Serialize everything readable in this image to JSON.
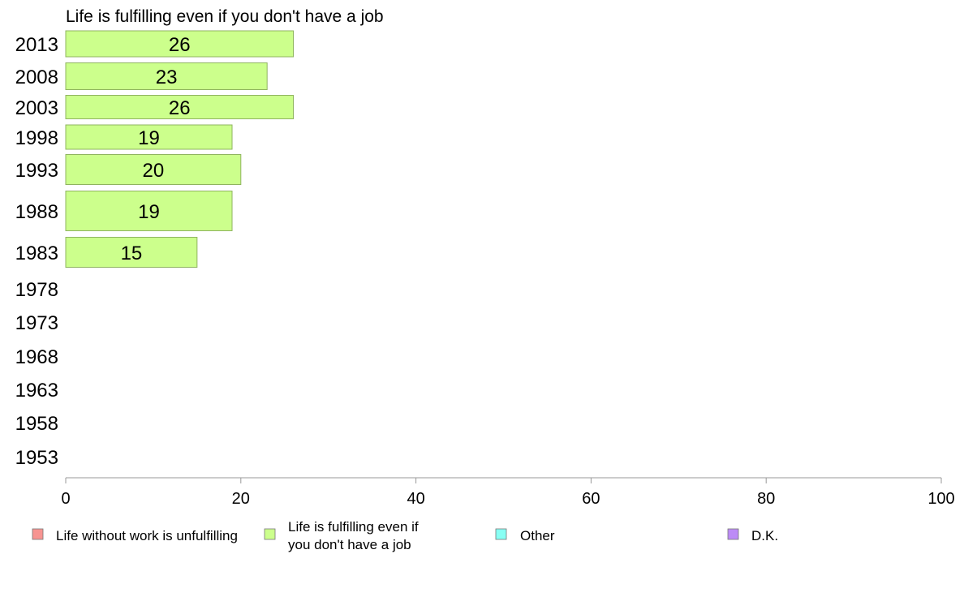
{
  "chart_data": {
    "type": "bar",
    "orientation": "horizontal",
    "title": "Life is fulfilling even if you don't have a job",
    "categories": [
      "2013",
      "2008",
      "2003",
      "1998",
      "1993",
      "1988",
      "1983",
      "1978",
      "1973",
      "1968",
      "1963",
      "1958",
      "1953"
    ],
    "series": [
      {
        "color": "#ccff8c",
        "values": [
          26,
          23,
          26,
          19,
          20,
          19,
          15,
          null,
          null,
          null,
          null,
          null,
          null
        ]
      }
    ],
    "xlim": [
      0,
      100
    ],
    "xticks": [
      "0",
      "20",
      "40",
      "60",
      "80",
      "100"
    ],
    "grid": false,
    "legend": {
      "placement": "bottom",
      "entries": [
        {
          "label": "Life without work is unfulfilling",
          "color": "#f79491"
        },
        {
          "label": "Life is fulfilling even if you don't have a job",
          "color": "#ccff8c"
        },
        {
          "label": "Other",
          "color": "#88fff4"
        },
        {
          "label": "D.K.",
          "color": "#bc8bf6"
        }
      ]
    }
  }
}
